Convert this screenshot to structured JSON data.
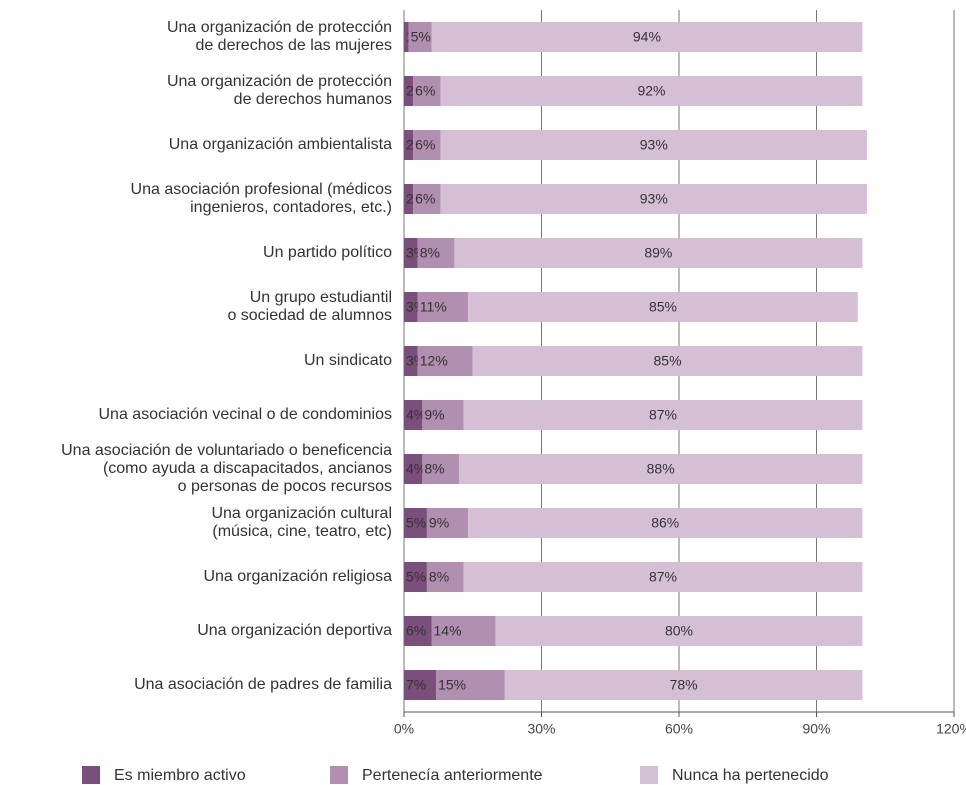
{
  "chart_data": {
    "type": "stacked-barh",
    "categories": [
      [
        "Una organización de protección",
        "de derechos de las mujeres"
      ],
      [
        "Una organización de protección",
        "de derechos humanos"
      ],
      [
        "Una organización ambientalista"
      ],
      [
        "Una asociación profesional (médicos",
        "ingenieros, contadores, etc.)"
      ],
      [
        "Un partido político"
      ],
      [
        "Un grupo estudiantil",
        "o sociedad de alumnos"
      ],
      [
        "Un sindicato"
      ],
      [
        "Una asociación vecinal o de condominios"
      ],
      [
        "Una asociación de voluntariado o beneficencia",
        "(como ayuda a discapacitados, ancianos",
        "o personas de pocos recursos"
      ],
      [
        "Una organización cultural",
        "(música, cine, teatro, etc)"
      ],
      [
        "Una organización religiosa"
      ],
      [
        "Una organización deportiva"
      ],
      [
        "Una asociación de padres de familia"
      ]
    ],
    "series": [
      {
        "name": "Es miembro activo",
        "color": "#7b4f7c",
        "label_color": "#ffffff",
        "values": [
          1,
          2,
          2,
          2,
          3,
          3,
          3,
          4,
          4,
          5,
          5,
          6,
          7
        ],
        "value_labels": [
          "1%",
          "2%",
          "2%",
          "2%",
          "3%",
          "3%",
          "3%",
          "4%",
          "4%",
          "5%",
          "5%",
          "6%",
          "7%"
        ]
      },
      {
        "name": "Pertenecía anteriormente",
        "color": "#b08fb0",
        "label_color": "#ffffff",
        "values": [
          5,
          6,
          6,
          6,
          8,
          11,
          12,
          9,
          8,
          9,
          8,
          14,
          15
        ],
        "value_labels": [
          "5%",
          "6%",
          "6%",
          "6%",
          "8%",
          "11%",
          "12%",
          "9%",
          "8%",
          "9%",
          "8%",
          "14%",
          "15%"
        ]
      },
      {
        "name": "Nunca ha pertenecido",
        "color": "#d5bfd5",
        "label_color": "#333333",
        "values": [
          94,
          92,
          93,
          93,
          89,
          85,
          85,
          87,
          88,
          86,
          87,
          80,
          78
        ],
        "value_labels": [
          "94%",
          "92%",
          "93%",
          "93%",
          "89%",
          "85%",
          "85%",
          "87%",
          "88%",
          "86%",
          "87%",
          "80%",
          "78%"
        ]
      }
    ],
    "xlim": [
      0,
      120
    ],
    "xticks": [
      {
        "value": 0,
        "label": "0%"
      },
      {
        "value": 30,
        "label": "30%"
      },
      {
        "value": 60,
        "label": "60%"
      },
      {
        "value": 90,
        "label": "90%"
      },
      {
        "value": 120,
        "label": "120%"
      }
    ],
    "grid": true
  }
}
